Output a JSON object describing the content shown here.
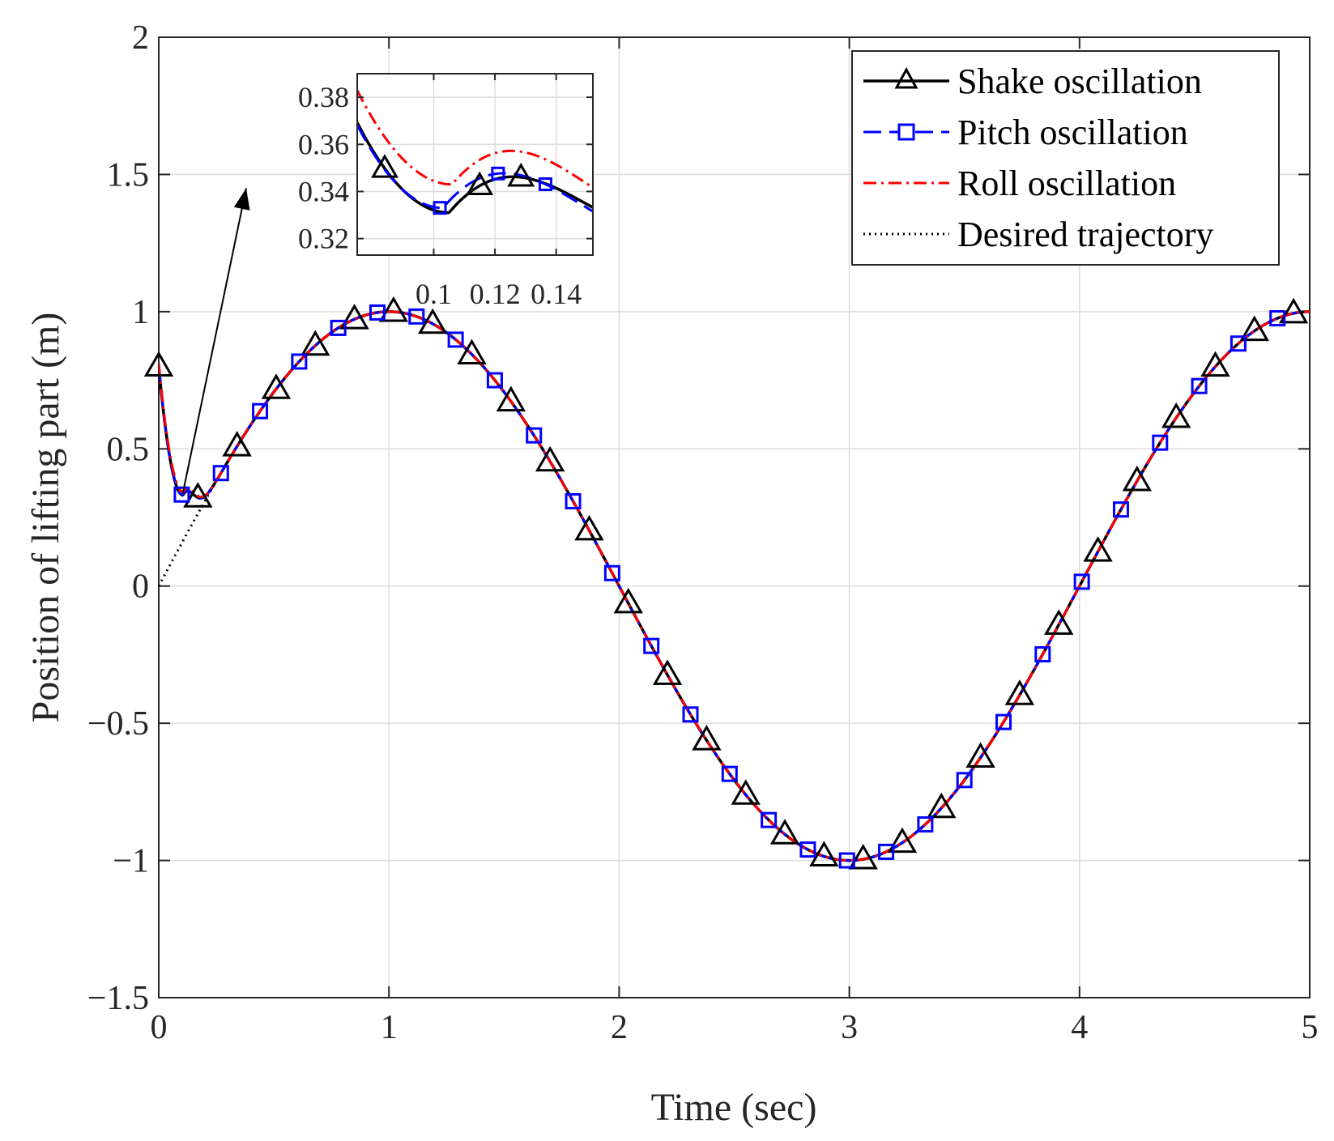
{
  "chart_data": {
    "type": "line",
    "title": "",
    "xlabel": "Time (sec)",
    "ylabel": "Position of lifting part (m)",
    "xlim": [
      0,
      5
    ],
    "ylim": [
      -1.5,
      2
    ],
    "xticks": [
      0,
      1,
      2,
      3,
      4,
      5
    ],
    "xtick_labels": [
      "0",
      "1",
      "2",
      "3",
      "4",
      "5"
    ],
    "yticks": [
      -1.5,
      -1,
      -0.5,
      0,
      0.5,
      1,
      1.5,
      2
    ],
    "ytick_labels": [
      "−1.5",
      "−1",
      "−0.5",
      "0",
      "0.5",
      "1",
      "1.5",
      "2"
    ],
    "grid": true,
    "legend_position": "top-right",
    "desired_trajectory": {
      "function": "sin",
      "amplitude": 1,
      "frequency_hz": 0.25,
      "x_range": [
        0,
        5
      ]
    },
    "series": [
      {
        "name": "Shake oscillation",
        "color": "#000000",
        "line_style": "solid",
        "marker": "triangle",
        "initial_value": 0.8,
        "minimum": [
          0.105,
          0.331
        ],
        "marker_x": [
          0,
          0.17,
          0.34,
          0.51,
          0.68,
          0.85,
          1.02,
          1.19,
          1.36,
          1.53,
          1.7,
          1.87,
          2.04,
          2.21,
          2.38,
          2.55,
          2.72,
          2.89,
          3.06,
          3.23,
          3.4,
          3.57,
          3.74,
          3.91,
          4.08,
          4.25,
          4.42,
          4.59,
          4.76,
          4.93
        ]
      },
      {
        "name": "Pitch oscillation",
        "color": "#0000ff",
        "line_style": "dashed",
        "marker": "square",
        "initial_value": 0.81,
        "minimum": [
          0.103,
          0.333
        ],
        "marker_x": [
          0.1,
          0.27,
          0.44,
          0.61,
          0.78,
          0.95,
          1.12,
          1.29,
          1.46,
          1.63,
          1.8,
          1.97,
          2.14,
          2.31,
          2.48,
          2.65,
          2.82,
          2.99,
          3.16,
          3.33,
          3.5,
          3.67,
          3.84,
          4.01,
          4.18,
          4.35,
          4.52,
          4.69,
          4.86
        ]
      },
      {
        "name": "Roll oscillation",
        "color": "#ff0000",
        "line_style": "dashdot",
        "marker": "none",
        "initial_value": 0.81,
        "minimum": [
          0.106,
          0.343
        ],
        "marker_x": []
      },
      {
        "name": "Desired trajectory",
        "color": "#000000",
        "line_style": "dotted",
        "marker": "none",
        "marker_x": []
      }
    ],
    "inset": {
      "xlim": [
        0.075,
        0.152
      ],
      "ylim": [
        0.313,
        0.39
      ],
      "xticks": [
        0.1,
        0.12,
        0.14
      ],
      "xtick_labels": [
        "0.1",
        "0.12",
        "0.14"
      ],
      "yticks": [
        0.32,
        0.34,
        0.36,
        0.38
      ],
      "ytick_labels": [
        "0.32",
        "0.34",
        "0.36",
        "0.38"
      ],
      "marker_x_shake": [
        0.084,
        0.115,
        0.1285
      ],
      "marker_x_pitch": [
        0.102,
        0.121,
        0.1365
      ]
    },
    "annotations": [
      {
        "type": "arrow",
        "from": [
          0.105,
          0.34
        ],
        "to": [
          0.38,
          1.45
        ]
      }
    ]
  }
}
